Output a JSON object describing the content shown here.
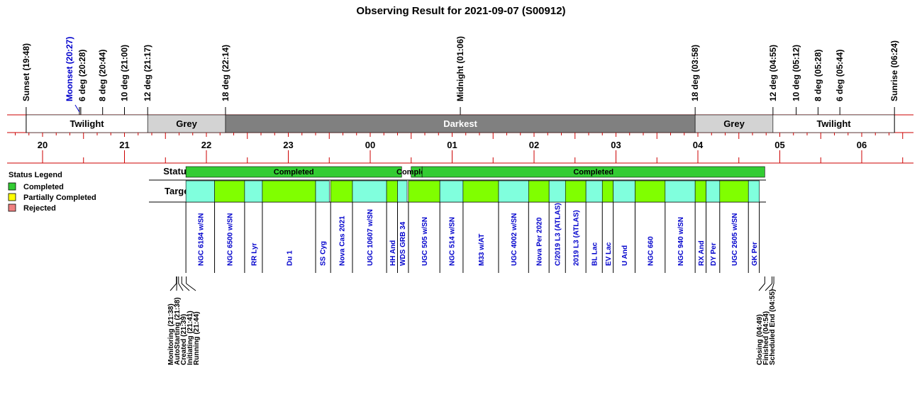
{
  "title": "Observing Result for 2021-09-07 (S00912)",
  "colors": {
    "twilight": "#ffffff",
    "grey": "#d3d3d3",
    "darkest": "#808080",
    "rule": "#cc0000",
    "completed": "#33cc33",
    "partial": "#ffff00",
    "rejected": "#f08080",
    "target_a": "#80ffdd",
    "target_b": "#80ff00",
    "label_blue": "#0000cc"
  },
  "legend": {
    "title": "Status Legend",
    "items": [
      {
        "label": "Completed",
        "color": "#33cc33"
      },
      {
        "label": "Partially Completed",
        "color": "#ffff00"
      },
      {
        "label": "Rejected",
        "color": "#f08080"
      }
    ]
  },
  "row_labels": {
    "status": "Status",
    "targets": "Targets"
  },
  "chart_data": {
    "type": "timeline",
    "date": "2021-09-07",
    "x_start": "19:30",
    "x_end": "06:50",
    "hour_ticks": [
      "20",
      "21",
      "22",
      "23",
      "00",
      "01",
      "02",
      "03",
      "04",
      "05",
      "06"
    ],
    "sky_events": [
      {
        "label": "Sunset (19:48)",
        "time": "19:48",
        "color": "black"
      },
      {
        "label": "Moonset (20:27)",
        "time": "20:27",
        "color": "blue"
      },
      {
        "label": "6 deg (20:28)",
        "time": "20:28",
        "color": "black"
      },
      {
        "label": "8 deg (20:44)",
        "time": "20:44",
        "color": "black"
      },
      {
        "label": "10 deg (21:00)",
        "time": "21:00",
        "color": "black"
      },
      {
        "label": "12 deg (21:17)",
        "time": "21:17",
        "color": "black"
      },
      {
        "label": "18 deg (22:14)",
        "time": "22:14",
        "color": "black"
      },
      {
        "label": "Midnight (01:06)",
        "time": "01:06",
        "color": "black"
      },
      {
        "label": "18 deg (03:58)",
        "time": "03:58",
        "color": "black"
      },
      {
        "label": "12 deg (04:55)",
        "time": "04:55",
        "color": "black"
      },
      {
        "label": "10 deg (05:12)",
        "time": "05:12",
        "color": "black"
      },
      {
        "label": "8 deg (05:28)",
        "time": "05:28",
        "color": "black"
      },
      {
        "label": "6 deg (05:44)",
        "time": "05:44",
        "color": "black"
      },
      {
        "label": "Sunrise (06:24)",
        "time": "06:24",
        "color": "black"
      }
    ],
    "sky_bands": [
      {
        "label": "Twilight",
        "start": "19:48",
        "end": "21:17",
        "kind": "twilight"
      },
      {
        "label": "Grey",
        "start": "21:17",
        "end": "22:14",
        "kind": "grey"
      },
      {
        "label": "Darkest",
        "start": "22:14",
        "end": "03:58",
        "kind": "darkest"
      },
      {
        "label": "Grey",
        "start": "03:58",
        "end": "04:55",
        "kind": "grey"
      },
      {
        "label": "Twilight",
        "start": "04:55",
        "end": "06:24",
        "kind": "twilight"
      }
    ],
    "status": [
      {
        "label": "Completed",
        "start": "21:45",
        "end": "00:23"
      },
      {
        "label": "Completed",
        "start": "00:30",
        "end": "00:38"
      },
      {
        "label": "Completed",
        "start": "00:38",
        "end": "00:38"
      },
      {
        "label": "Completed",
        "start": "00:38",
        "end": "04:49"
      }
    ],
    "targets": [
      {
        "name": "NGC 6184 w/SN",
        "start": "21:45",
        "end": "22:06",
        "shade": "a"
      },
      {
        "name": "NGC 6500 w/SN",
        "start": "22:06",
        "end": "22:28",
        "shade": "b"
      },
      {
        "name": "RR Lyr",
        "start": "22:28",
        "end": "22:41",
        "shade": "a"
      },
      {
        "name": "Du 1",
        "start": "22:41",
        "end": "23:20",
        "shade": "b"
      },
      {
        "name": "SS Cyg",
        "start": "23:20",
        "end": "23:30",
        "shade": "a"
      },
      {
        "name": "Nova Cas 2021",
        "start": "23:31",
        "end": "23:47",
        "shade": "b"
      },
      {
        "name": "UGC 10607 w/SN",
        "start": "23:47",
        "end": "00:12",
        "shade": "a"
      },
      {
        "name": "HH And",
        "start": "00:12",
        "end": "00:20",
        "shade": "b"
      },
      {
        "name": "WDS GRB 34",
        "start": "00:20",
        "end": "00:27",
        "shade": "a"
      },
      {
        "name": "UGC 505 w/SN",
        "start": "00:28",
        "end": "00:51",
        "shade": "b"
      },
      {
        "name": "NGC 514 w/SN",
        "start": "00:51",
        "end": "01:08",
        "shade": "a"
      },
      {
        "name": "M33 w/AT",
        "start": "01:08",
        "end": "01:34",
        "shade": "b"
      },
      {
        "name": "UGC 4002 w/SN",
        "start": "01:34",
        "end": "01:56",
        "shade": "a"
      },
      {
        "name": "Nova Per 2020",
        "start": "01:56",
        "end": "02:11",
        "shade": "b"
      },
      {
        "name": "C/2019 L3 (ATLAS)",
        "start": "02:11",
        "end": "02:23",
        "shade": "a"
      },
      {
        "name": "2019 L3 (ATLAS)",
        "start": "02:23",
        "end": "02:38",
        "shade": "b"
      },
      {
        "name": "BL Lac",
        "start": "02:38",
        "end": "02:50",
        "shade": "a"
      },
      {
        "name": "EV Lac",
        "start": "02:50",
        "end": "02:58",
        "shade": "b"
      },
      {
        "name": "U And",
        "start": "02:58",
        "end": "03:14",
        "shade": "a"
      },
      {
        "name": "NGC 660",
        "start": "03:14",
        "end": "03:36",
        "shade": "b"
      },
      {
        "name": "NGC 940 w/SN",
        "start": "03:36",
        "end": "03:58",
        "shade": "a"
      },
      {
        "name": "RX And",
        "start": "03:58",
        "end": "04:06",
        "shade": "b"
      },
      {
        "name": "DY Per",
        "start": "04:06",
        "end": "04:16",
        "shade": "a"
      },
      {
        "name": "UGC 2605 w/SN",
        "start": "04:16",
        "end": "04:37",
        "shade": "b"
      },
      {
        "name": "GK Per",
        "start": "04:37",
        "end": "04:45",
        "shade": "a"
      }
    ],
    "events_start": [
      {
        "label": "Monitoring (21:38)",
        "time": "21:38"
      },
      {
        "label": "AutoStarting (21:38)",
        "time": "21:38"
      },
      {
        "label": "Created (21:39)",
        "time": "21:39"
      },
      {
        "label": "Initiating (21:41)",
        "time": "21:41"
      },
      {
        "label": "Running (21:44)",
        "time": "21:44"
      }
    ],
    "events_end": [
      {
        "label": "Closing (04:49)",
        "time": "04:49"
      },
      {
        "label": "Finished (04:54)",
        "time": "04:54"
      },
      {
        "label": "Scheduled End (04:55)",
        "time": "04:55"
      }
    ]
  }
}
